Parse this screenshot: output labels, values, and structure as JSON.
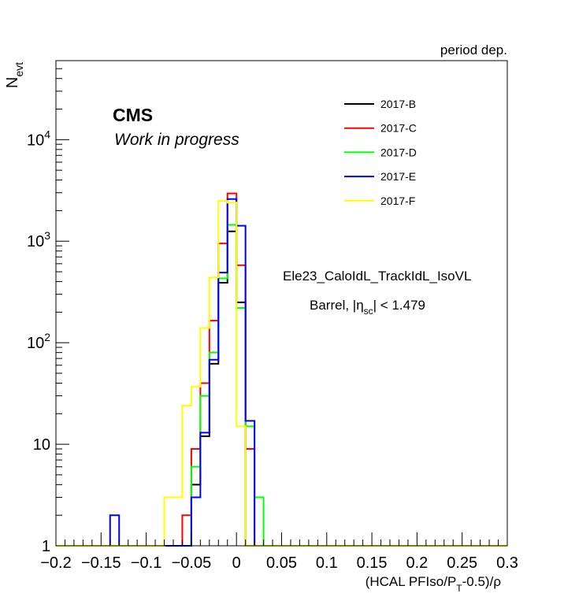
{
  "header": {
    "period_label": "period dep."
  },
  "labels": {
    "cms": "CMS",
    "work": "Work in progress",
    "trigger": "Ele23_CaloIdL_TrackIdL_IsoVL",
    "region": {
      "prefix": "Barrel, |η",
      "sub": "sc",
      "suffix": "| < 1.479"
    }
  },
  "chart_data": {
    "type": "step-histogram",
    "ylabel": {
      "main": "N",
      "sub": "evt"
    },
    "xlabel": {
      "part1": "(HCAL PFIso/P",
      "sub": "T",
      "part2": "-0.5)/ρ"
    },
    "xlim": [
      -0.2,
      0.3
    ],
    "ylim": [
      1,
      60000
    ],
    "log_y": true,
    "bin_width": 0.01,
    "grid": false,
    "legend_position": "top-right",
    "x_ticks": [
      {
        "v": -0.2,
        "label": "−0.2"
      },
      {
        "v": -0.15,
        "label": "−0.15"
      },
      {
        "v": -0.1,
        "label": "−0.1"
      },
      {
        "v": -0.05,
        "label": "−0.05"
      },
      {
        "v": 0,
        "label": "0"
      },
      {
        "v": 0.05,
        "label": "0.05"
      },
      {
        "v": 0.1,
        "label": "0.1"
      },
      {
        "v": 0.15,
        "label": "0.15"
      },
      {
        "v": 0.2,
        "label": "0.2"
      },
      {
        "v": 0.25,
        "label": "0.25"
      },
      {
        "v": 0.3,
        "label": "0.3"
      }
    ],
    "y_ticks": [
      {
        "v": 1,
        "label": "1"
      },
      {
        "v": 10,
        "label": "10"
      },
      {
        "v": 100,
        "base": "10",
        "exp": "2"
      },
      {
        "v": 1000,
        "base": "10",
        "exp": "3"
      },
      {
        "v": 10000,
        "base": "10",
        "exp": "4"
      }
    ],
    "series": [
      {
        "name": "2017-B",
        "color": "#000000",
        "bins": [
          {
            "lo": -0.06,
            "v": 1
          },
          {
            "lo": -0.05,
            "v": 4
          },
          {
            "lo": -0.04,
            "v": 12
          },
          {
            "lo": -0.03,
            "v": 62
          },
          {
            "lo": -0.02,
            "v": 390
          },
          {
            "lo": -0.01,
            "v": 1250
          },
          {
            "lo": 0.0,
            "v": 250
          },
          {
            "lo": 0.01,
            "v": 1
          }
        ]
      },
      {
        "name": "2017-C",
        "color": "#ff0000",
        "bins": [
          {
            "lo": -0.06,
            "v": 2
          },
          {
            "lo": -0.05,
            "v": 9
          },
          {
            "lo": -0.04,
            "v": 40
          },
          {
            "lo": -0.03,
            "v": 165
          },
          {
            "lo": -0.02,
            "v": 950
          },
          {
            "lo": -0.01,
            "v": 2950
          },
          {
            "lo": 0.0,
            "v": 580
          },
          {
            "lo": 0.01,
            "v": 9
          },
          {
            "lo": 0.02,
            "v": 1
          }
        ]
      },
      {
        "name": "2017-D",
        "color": "#00ff00",
        "bins": [
          {
            "lo": -0.05,
            "v": 6
          },
          {
            "lo": -0.04,
            "v": 30
          },
          {
            "lo": -0.03,
            "v": 80
          },
          {
            "lo": -0.02,
            "v": 430
          },
          {
            "lo": -0.01,
            "v": 1450
          },
          {
            "lo": 0.0,
            "v": 220
          },
          {
            "lo": 0.01,
            "v": 15
          },
          {
            "lo": 0.02,
            "v": 3
          },
          {
            "lo": 0.03,
            "v": 1
          }
        ]
      },
      {
        "name": "2017-E",
        "color": "#0000ff",
        "bins": [
          {
            "lo": -0.14,
            "v": 2
          },
          {
            "lo": -0.13,
            "v": 1
          },
          {
            "lo": -0.06,
            "v": 1
          },
          {
            "lo": -0.05,
            "v": 3
          },
          {
            "lo": -0.04,
            "v": 13
          },
          {
            "lo": -0.03,
            "v": 68
          },
          {
            "lo": -0.02,
            "v": 490
          },
          {
            "lo": -0.01,
            "v": 2600
          },
          {
            "lo": 0.0,
            "v": 1420
          },
          {
            "lo": 0.01,
            "v": 17
          },
          {
            "lo": 0.02,
            "v": 1
          }
        ]
      },
      {
        "name": "2017-F",
        "color": "#ffff00",
        "bins": [
          {
            "lo": -0.08,
            "v": 3
          },
          {
            "lo": -0.07,
            "v": 3
          },
          {
            "lo": -0.06,
            "v": 24
          },
          {
            "lo": -0.05,
            "v": 37
          },
          {
            "lo": -0.04,
            "v": 140
          },
          {
            "lo": -0.03,
            "v": 440
          },
          {
            "lo": -0.02,
            "v": 2500
          },
          {
            "lo": -0.01,
            "v": 2400
          },
          {
            "lo": 0.0,
            "v": 15
          },
          {
            "lo": 0.01,
            "v": 1
          }
        ]
      }
    ]
  }
}
